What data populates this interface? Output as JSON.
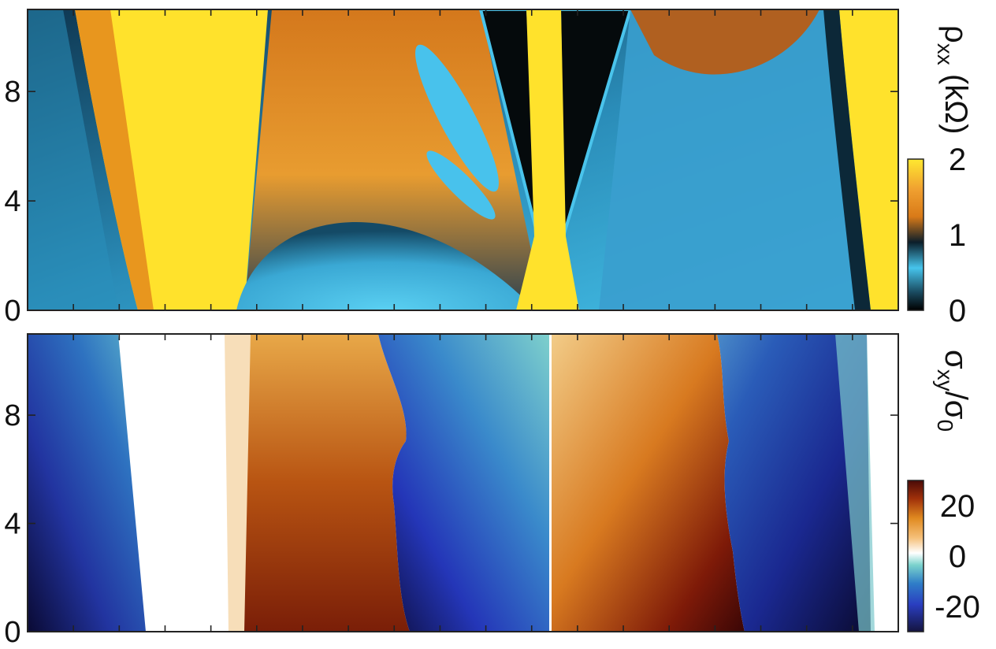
{
  "chart_data": [
    {
      "type": "heatmap",
      "panel": "top",
      "colorbar_label_main": "ρ",
      "colorbar_label_sub": "xx",
      "colorbar_label_unit": " (kΩ)",
      "colorbar_ticks": [
        "2",
        "1",
        "0"
      ],
      "colorbar_range": [
        0,
        2
      ],
      "colormap": [
        "#000000",
        "#1a4a60",
        "#46c4ec",
        "#0b1e2a",
        "#d97a18",
        "#f0a030",
        "#ffe830"
      ],
      "y_ticks": [
        "8",
        "4",
        "0"
      ],
      "y_tick_values": [
        8,
        4,
        0
      ],
      "ylim": [
        0,
        11
      ],
      "x_ticks_count": 19,
      "x_tick_labels_shown": false,
      "features": [
        {
          "kind": "background",
          "color": "#1a6e94"
        },
        {
          "kind": "band",
          "color": "#f0c020",
          "desc": "left yellow band"
        },
        {
          "kind": "band",
          "color": "#e6921e",
          "desc": "central orange fan"
        },
        {
          "kind": "band",
          "color": "#050a0c",
          "desc": "central dark wedges"
        },
        {
          "kind": "band",
          "color": "#ffe22c",
          "desc": "central yellow line"
        },
        {
          "kind": "band",
          "color": "#ffe22c",
          "desc": "right yellow band"
        }
      ]
    },
    {
      "type": "heatmap",
      "panel": "bottom",
      "colorbar_label_main": "σ",
      "colorbar_label_sub1": "xy",
      "colorbar_label_slash": "/σ",
      "colorbar_label_sub2": "0",
      "colorbar_ticks": [
        "20",
        "0",
        "-20"
      ],
      "colorbar_range": [
        -30,
        30
      ],
      "colormap": [
        "#141440",
        "#2a3ec0",
        "#2f7ec8",
        "#7ad2cc",
        "#ffffff",
        "#f5c07a",
        "#e08a20",
        "#a0300a",
        "#4a0a08"
      ],
      "y_ticks": [
        "8",
        "4",
        "0"
      ],
      "y_tick_values": [
        8,
        4,
        0
      ],
      "ylim": [
        0,
        11
      ],
      "x_ticks_count": 19,
      "x_tick_labels_shown": false
    }
  ]
}
